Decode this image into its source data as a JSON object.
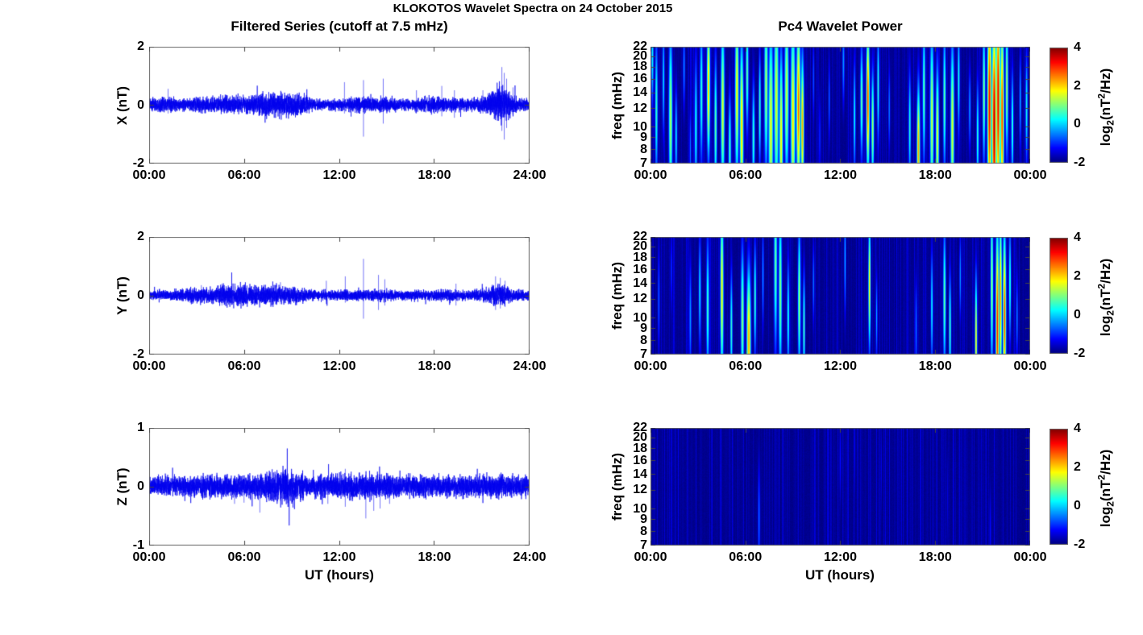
{
  "figure": {
    "title": "KLOKOTOS Wavelet Spectra on 24 October 2015",
    "left_title": "Filtered Series (cutoff at 7.5 mHz)",
    "right_title": "Pc4 Wavelet Power",
    "xlabel": "UT (hours)"
  },
  "labels": {
    "colorbar_parts": {
      "base": "log",
      "sub": "2",
      "mid": "(nT",
      "sup": "2",
      "close": "/Hz)"
    }
  },
  "colors": {
    "line": "#0000ee",
    "axis": "#666666",
    "text": "#000000",
    "heatmap_background": "#000080",
    "colormap": "jet"
  },
  "chart_data": [
    {
      "id": "x-filtered-series",
      "type": "line",
      "ylabel": "X (nT)",
      "ylim": [
        -2,
        2
      ],
      "yticks": {
        "values": [
          2,
          0,
          -2
        ],
        "labels": [
          "2",
          "0",
          "-2"
        ]
      },
      "xticks": {
        "hours": [
          0,
          6,
          12,
          18,
          24
        ],
        "labels": [
          "00:00",
          "06:00",
          "12:00",
          "18:00",
          "24:00"
        ]
      },
      "noise_envelope": {
        "hours": [
          0,
          1,
          2,
          3,
          4,
          5,
          6,
          7,
          8,
          9,
          9.7,
          10.2,
          11,
          12,
          13,
          14,
          15,
          16,
          16.6,
          17,
          18,
          19,
          20,
          21,
          21.6,
          22,
          22.3,
          22.8,
          23.2,
          24
        ],
        "amp_nT": [
          0.1,
          0.12,
          0.1,
          0.13,
          0.12,
          0.15,
          0.15,
          0.17,
          0.2,
          0.2,
          0.17,
          0.1,
          0.08,
          0.1,
          0.12,
          0.12,
          0.12,
          0.09,
          0.08,
          0.12,
          0.13,
          0.12,
          0.1,
          0.12,
          0.18,
          0.28,
          0.3,
          0.2,
          0.12,
          0.1
        ]
      },
      "spikes": [
        [
          1.2,
          0.55,
          -0.3
        ],
        [
          12.35,
          0.78,
          -0.3
        ],
        [
          13.55,
          0.85,
          -1.1
        ],
        [
          14.8,
          0.9,
          -0.65
        ],
        [
          16.9,
          0.5,
          -0.3
        ],
        [
          18.5,
          0.65,
          -0.4
        ],
        [
          19.3,
          0.5,
          -0.45
        ],
        [
          21.1,
          0.5,
          -0.3
        ],
        [
          22.3,
          1.3,
          -0.9
        ],
        [
          22.45,
          1.1,
          -1.2
        ],
        [
          22.6,
          0.9,
          -0.8
        ],
        [
          23.0,
          0.6,
          -0.4
        ]
      ]
    },
    {
      "id": "y-filtered-series",
      "type": "line",
      "ylabel": "Y (nT)",
      "ylim": [
        -2,
        2
      ],
      "yticks": {
        "values": [
          2,
          0,
          -2
        ],
        "labels": [
          "2",
          "0",
          "-2"
        ]
      },
      "xticks": {
        "hours": [
          0,
          6,
          12,
          18,
          24
        ],
        "labels": [
          "00:00",
          "06:00",
          "12:00",
          "18:00",
          "24:00"
        ]
      },
      "noise_envelope": {
        "hours": [
          0,
          1,
          2,
          3,
          4,
          4.5,
          5,
          5.5,
          6,
          6.5,
          7,
          7.5,
          8,
          8.5,
          9,
          9.5,
          10,
          11,
          12,
          13,
          14,
          15,
          16,
          17,
          18,
          19,
          20,
          21,
          21.5,
          22,
          22.5,
          23,
          24
        ],
        "amp_nT": [
          0.08,
          0.08,
          0.09,
          0.12,
          0.13,
          0.15,
          0.16,
          0.18,
          0.18,
          0.17,
          0.15,
          0.16,
          0.15,
          0.14,
          0.13,
          0.12,
          0.09,
          0.08,
          0.08,
          0.09,
          0.1,
          0.09,
          0.08,
          0.08,
          0.09,
          0.1,
          0.08,
          0.09,
          0.13,
          0.18,
          0.15,
          0.09,
          0.08
        ]
      },
      "spikes": [
        [
          3.3,
          0.35,
          -0.25
        ],
        [
          4.6,
          0.4,
          -0.35
        ],
        [
          8.3,
          0.45,
          -0.3
        ],
        [
          11.2,
          0.5,
          -0.2
        ],
        [
          12.4,
          0.65,
          -0.25
        ],
        [
          13.55,
          1.25,
          -0.8
        ],
        [
          14.5,
          0.7,
          -0.5
        ],
        [
          14.9,
          0.55,
          -0.35
        ],
        [
          19.4,
          0.4,
          -0.35
        ],
        [
          21.9,
          0.65,
          -0.5
        ],
        [
          22.2,
          0.6,
          -0.45
        ],
        [
          22.5,
          0.5,
          -0.4
        ]
      ]
    },
    {
      "id": "z-filtered-series",
      "type": "line",
      "ylabel": "Z (nT)",
      "ylim": [
        -1,
        1
      ],
      "yticks": {
        "values": [
          1,
          0,
          -1
        ],
        "labels": [
          "1",
          "0",
          "-1"
        ]
      },
      "xticks": {
        "hours": [
          0,
          6,
          12,
          18,
          24
        ],
        "labels": [
          "00:00",
          "06:00",
          "12:00",
          "18:00",
          "24:00"
        ]
      },
      "noise_envelope": {
        "hours": [
          0,
          2,
          4,
          6,
          7,
          8,
          8.5,
          9,
          9.5,
          10,
          11,
          12,
          13,
          14,
          15,
          16,
          17,
          18,
          19,
          20,
          21,
          22,
          23,
          24
        ],
        "amp_nT": [
          0.08,
          0.08,
          0.09,
          0.09,
          0.09,
          0.13,
          0.15,
          0.14,
          0.12,
          0.09,
          0.09,
          0.1,
          0.1,
          0.1,
          0.09,
          0.08,
          0.09,
          0.09,
          0.09,
          0.09,
          0.09,
          0.1,
          0.09,
          0.09
        ]
      },
      "spikes": [
        [
          5.4,
          0.15,
          -0.3
        ],
        [
          6.0,
          0.1,
          -0.28
        ],
        [
          7.0,
          0.12,
          -0.45
        ],
        [
          8.3,
          0.2,
          -0.25
        ],
        [
          11.3,
          0.15,
          -0.3
        ],
        [
          12.4,
          0.3,
          -0.35
        ],
        [
          13.7,
          0.2,
          -0.55
        ],
        [
          14.2,
          0.15,
          -0.42
        ],
        [
          14.6,
          0.15,
          -0.38
        ],
        [
          15.2,
          0.12,
          -0.3
        ]
      ]
    },
    {
      "id": "x-wavelet-power",
      "type": "heatmap",
      "ylabel": "freq (mHz)",
      "yscale": "log",
      "flim_mHz": [
        7,
        22
      ],
      "yticks": {
        "values": [
          22,
          20,
          18,
          16,
          14,
          12,
          10,
          9,
          8,
          7
        ],
        "labels": [
          "22",
          "20",
          "18",
          "16",
          "14",
          "12",
          "10",
          "9",
          "8",
          "7"
        ]
      },
      "xticks": {
        "hours": [
          0,
          6,
          12,
          18,
          24
        ],
        "labels": [
          "00:00",
          "06:00",
          "12:00",
          "18:00",
          "00:00"
        ]
      },
      "colorbar": {
        "clim": [
          -2,
          4
        ],
        "tick_values": [
          4,
          2,
          0,
          -2
        ],
        "tick_labels": [
          "4",
          "2",
          "0",
          "-2"
        ]
      },
      "background_log2_power": -2,
      "events_note": "each event: [hour, center_freq_mHz, freq_sigma_ln, peak_log2_power, time_sigma_hours]",
      "events": [
        [
          0.1,
          20,
          0.35,
          0.3,
          0.05
        ],
        [
          0.35,
          12,
          0.5,
          0.6,
          0.06
        ],
        [
          0.8,
          16,
          0.4,
          0.1,
          0.05
        ],
        [
          1.25,
          11,
          0.6,
          1.3,
          0.08
        ],
        [
          1.6,
          9,
          0.35,
          0.2,
          0.05
        ],
        [
          2.1,
          18,
          0.3,
          -0.4,
          0.05
        ],
        [
          2.5,
          8,
          0.3,
          -0.5,
          0.04
        ],
        [
          2.85,
          10,
          0.5,
          0.4,
          0.06
        ],
        [
          3.2,
          14,
          0.5,
          0.6,
          0.06
        ],
        [
          3.65,
          15,
          0.5,
          2.2,
          0.07
        ],
        [
          4.1,
          10,
          0.5,
          0.9,
          0.06
        ],
        [
          4.55,
          12,
          0.6,
          1.6,
          0.08
        ],
        [
          5.0,
          8,
          0.4,
          0.7,
          0.06
        ],
        [
          5.45,
          14,
          0.6,
          1.9,
          0.08
        ],
        [
          5.75,
          10,
          0.6,
          2.1,
          0.08
        ],
        [
          6.1,
          17,
          0.4,
          0.9,
          0.06
        ],
        [
          6.5,
          9,
          0.4,
          0.6,
          0.06
        ],
        [
          6.9,
          12,
          0.4,
          0.7,
          0.05
        ],
        [
          7.3,
          15,
          0.6,
          1.3,
          0.08
        ],
        [
          7.6,
          10,
          0.7,
          1.7,
          0.1
        ],
        [
          7.95,
          13,
          0.7,
          1.6,
          0.1
        ],
        [
          8.25,
          9,
          0.6,
          1.9,
          0.08
        ],
        [
          8.6,
          14,
          0.6,
          1.5,
          0.09
        ],
        [
          9.0,
          11,
          0.7,
          1.9,
          0.1
        ],
        [
          9.35,
          12,
          0.6,
          2.7,
          0.09
        ],
        [
          9.6,
          10,
          0.5,
          2.3,
          0.07
        ],
        [
          10.3,
          16,
          0.3,
          -0.7,
          0.04
        ],
        [
          10.7,
          9,
          0.3,
          -0.9,
          0.04
        ],
        [
          11.3,
          13,
          0.3,
          -0.6,
          0.04
        ],
        [
          12.2,
          19,
          0.3,
          -0.3,
          0.05
        ],
        [
          12.9,
          11,
          0.4,
          0.3,
          0.05
        ],
        [
          13.35,
          13,
          0.4,
          0.9,
          0.06
        ],
        [
          13.75,
          13,
          0.5,
          2.9,
          0.07
        ],
        [
          14.05,
          10,
          0.4,
          1.3,
          0.06
        ],
        [
          14.4,
          15,
          0.4,
          0.5,
          0.05
        ],
        [
          15.1,
          12,
          0.3,
          -0.4,
          0.04
        ],
        [
          16.4,
          10,
          0.4,
          0.5,
          0.05
        ],
        [
          16.95,
          8,
          0.45,
          2.3,
          0.07
        ],
        [
          17.3,
          14,
          0.5,
          0.9,
          0.06
        ],
        [
          17.8,
          11,
          0.6,
          1.5,
          0.08
        ],
        [
          18.15,
          9,
          0.5,
          1.7,
          0.07
        ],
        [
          18.6,
          13,
          0.5,
          0.9,
          0.06
        ],
        [
          19.1,
          10,
          0.6,
          1.6,
          0.08
        ],
        [
          19.5,
          16,
          0.4,
          0.4,
          0.05
        ],
        [
          20.2,
          12,
          0.3,
          -0.3,
          0.05
        ],
        [
          20.7,
          9,
          0.4,
          0.6,
          0.05
        ],
        [
          21.1,
          14,
          0.5,
          1.1,
          0.06
        ],
        [
          21.45,
          12,
          0.8,
          3.3,
          0.09
        ],
        [
          21.75,
          10,
          0.8,
          3.7,
          0.1
        ],
        [
          22.0,
          13,
          0.8,
          3.4,
          0.09
        ],
        [
          22.25,
          11,
          0.7,
          2.9,
          0.08
        ],
        [
          22.55,
          15,
          0.5,
          1.3,
          0.06
        ],
        [
          22.9,
          10,
          0.4,
          0.7,
          0.05
        ],
        [
          23.4,
          13,
          0.35,
          -0.1,
          0.04
        ],
        [
          23.8,
          12,
          0.4,
          0.4,
          0.05
        ]
      ]
    },
    {
      "id": "y-wavelet-power",
      "type": "heatmap",
      "ylabel": "freq (mHz)",
      "yscale": "log",
      "flim_mHz": [
        7,
        22
      ],
      "yticks": {
        "values": [
          22,
          20,
          18,
          16,
          14,
          12,
          10,
          9,
          8,
          7
        ],
        "labels": [
          "22",
          "20",
          "18",
          "16",
          "14",
          "12",
          "10",
          "9",
          "8",
          "7"
        ]
      },
      "xticks": {
        "hours": [
          0,
          6,
          12,
          18,
          24
        ],
        "labels": [
          "00:00",
          "06:00",
          "12:00",
          "18:00",
          "00:00"
        ]
      },
      "colorbar": {
        "clim": [
          -2,
          4
        ],
        "tick_values": [
          4,
          2,
          0,
          -2
        ],
        "tick_labels": [
          "4",
          "2",
          "0",
          "-2"
        ]
      },
      "background_log2_power": -2,
      "events": [
        [
          0.5,
          12,
          0.4,
          -0.7,
          0.05
        ],
        [
          1.3,
          16,
          0.3,
          -0.9,
          0.04
        ],
        [
          2.5,
          10,
          0.4,
          -0.3,
          0.05
        ],
        [
          3.1,
          13,
          0.4,
          0.2,
          0.05
        ],
        [
          3.6,
          11,
          0.5,
          0.7,
          0.06
        ],
        [
          4.5,
          13,
          0.6,
          1.9,
          0.07
        ],
        [
          5.1,
          9,
          0.4,
          0.6,
          0.05
        ],
        [
          5.8,
          10,
          0.5,
          1.1,
          0.07
        ],
        [
          6.2,
          8,
          0.5,
          2.3,
          0.09
        ],
        [
          6.6,
          12,
          0.4,
          0.7,
          0.05
        ],
        [
          7.1,
          15,
          0.35,
          -0.2,
          0.04
        ],
        [
          7.9,
          17,
          0.6,
          0.9,
          0.07
        ],
        [
          8.2,
          13,
          0.6,
          1.1,
          0.07
        ],
        [
          8.7,
          10,
          0.4,
          0.5,
          0.05
        ],
        [
          9.4,
          12,
          0.5,
          1.3,
          0.06
        ],
        [
          9.7,
          9,
          0.4,
          0.7,
          0.05
        ],
        [
          10.3,
          14,
          0.3,
          -0.5,
          0.04
        ],
        [
          12.3,
          18,
          0.4,
          -0.1,
          0.04
        ],
        [
          13.85,
          14,
          0.45,
          1.9,
          0.05
        ],
        [
          14.3,
          10,
          0.3,
          -0.2,
          0.04
        ],
        [
          16.8,
          9,
          0.35,
          -0.4,
          0.04
        ],
        [
          17.8,
          11,
          0.4,
          0.3,
          0.05
        ],
        [
          18.6,
          12,
          0.5,
          0.9,
          0.06
        ],
        [
          18.95,
          9,
          0.4,
          0.7,
          0.05
        ],
        [
          19.6,
          15,
          0.3,
          -0.3,
          0.04
        ],
        [
          20.6,
          8,
          0.45,
          1.9,
          0.05
        ],
        [
          21.6,
          14,
          0.6,
          1.3,
          0.06
        ],
        [
          21.95,
          9,
          0.7,
          3.2,
          0.07
        ],
        [
          22.15,
          12,
          0.6,
          2.4,
          0.06
        ],
        [
          22.4,
          10,
          0.6,
          2.9,
          0.07
        ],
        [
          22.75,
          14,
          0.4,
          0.6,
          0.05
        ],
        [
          23.2,
          10,
          0.3,
          -0.4,
          0.04
        ]
      ]
    },
    {
      "id": "z-wavelet-power",
      "type": "heatmap",
      "ylabel": "freq (mHz)",
      "yscale": "log",
      "flim_mHz": [
        7,
        22
      ],
      "yticks": {
        "values": [
          22,
          20,
          18,
          16,
          14,
          12,
          10,
          9,
          8,
          7
        ],
        "labels": [
          "22",
          "20",
          "18",
          "16",
          "14",
          "12",
          "10",
          "9",
          "8",
          "7"
        ]
      },
      "xticks": {
        "hours": [
          0,
          6,
          12,
          18,
          24
        ],
        "labels": [
          "00:00",
          "06:00",
          "12:00",
          "18:00",
          "00:00"
        ]
      },
      "colorbar": {
        "clim": [
          -2,
          4
        ],
        "tick_values": [
          4,
          2,
          0,
          -2
        ],
        "tick_labels": [
          "4",
          "2",
          "0",
          "-2"
        ]
      },
      "background_log2_power": -2,
      "events": [
        [
          6.85,
          9,
          0.4,
          -0.6,
          0.05
        ],
        [
          12.0,
          16,
          0.3,
          -1.2,
          0.04
        ],
        [
          12.9,
          18,
          0.3,
          -1.3,
          0.04
        ],
        [
          14.6,
          15,
          0.3,
          -1.4,
          0.03
        ],
        [
          18.8,
          11,
          0.3,
          -1.4,
          0.03
        ],
        [
          21.5,
          8,
          0.3,
          -1.2,
          0.04
        ]
      ]
    }
  ]
}
